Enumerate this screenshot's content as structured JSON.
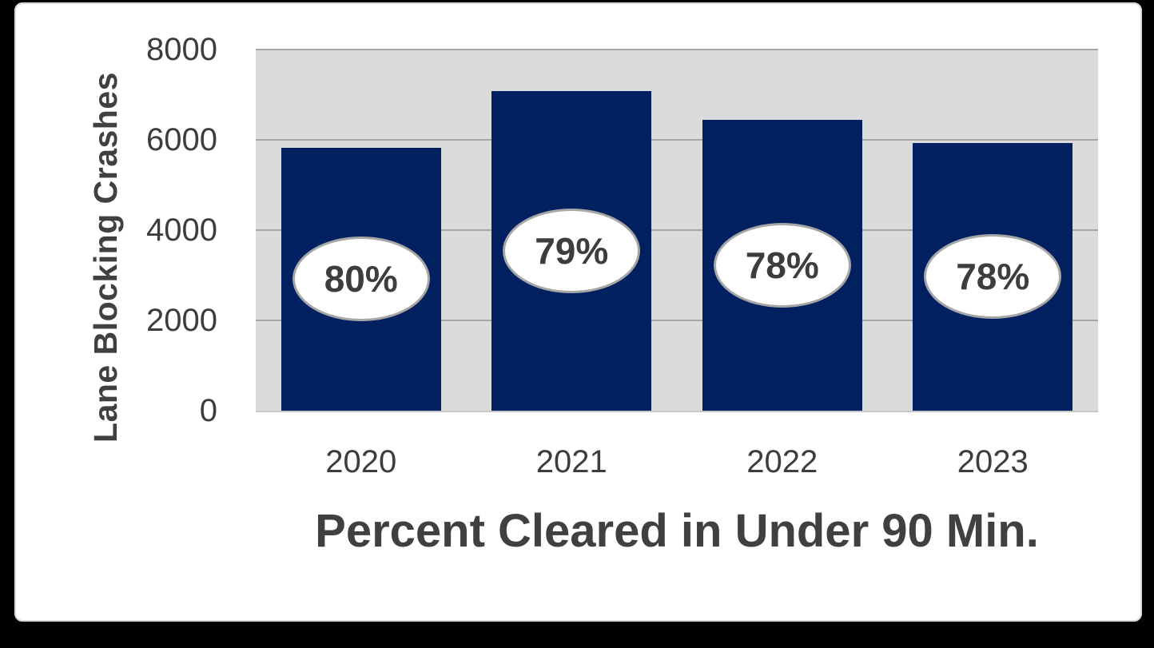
{
  "page": {
    "background": "#000000"
  },
  "card": {
    "background": "#ffffff",
    "border_color": "#d9d9d9"
  },
  "chart_data": {
    "type": "bar",
    "xlabel": "Percent Cleared in Under 90 Min.",
    "ylabel": "Lane Blocking Crashes",
    "categories": [
      "2020",
      "2021",
      "2022",
      "2023"
    ],
    "values": [
      5830,
      7080,
      6440,
      5930
    ],
    "bar_labels": [
      "80%",
      "79%",
      "78%",
      "78%"
    ],
    "ylim": [
      0,
      8000
    ],
    "yticks": [
      8000,
      6000,
      4000,
      2000,
      0
    ],
    "grid": true,
    "legend_position": "none",
    "colors": {
      "bar": "#002060",
      "plot_background": "#dbdbdb",
      "gridline": "#a6a6a6",
      "axis_text": "#3d3d3d",
      "title_text": "#404040",
      "oval_fill": "#ffffff",
      "oval_border": "#a6a6a6"
    }
  }
}
